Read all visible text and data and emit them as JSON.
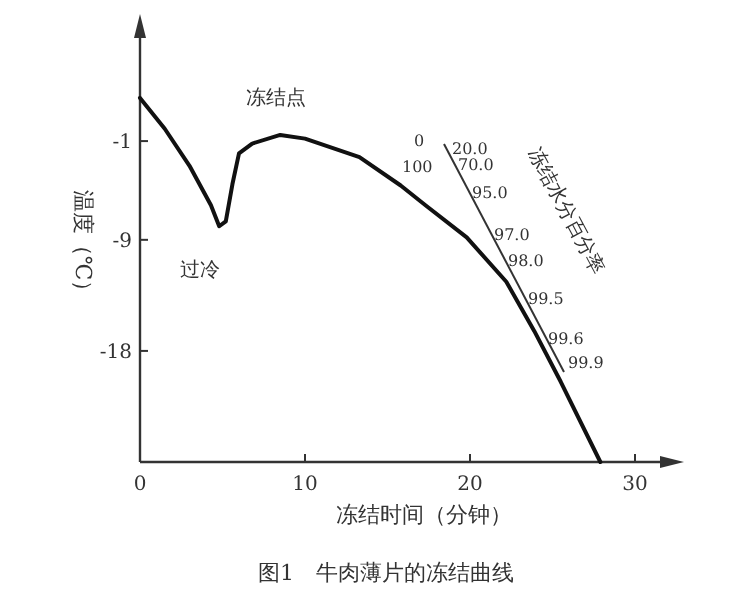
{
  "chart_data": {
    "type": "line",
    "xlabel": "冻结时间（分钟）",
    "ylabel": "温度（℃）",
    "x": [
      0,
      1.5,
      3,
      4.3,
      4.8,
      5.2,
      5.6,
      6,
      6.8,
      8.5,
      10,
      13.3,
      15.8,
      17.3,
      19.8,
      22.2,
      23.9,
      25.5,
      27.9
    ],
    "series": [
      {
        "color": "#111111",
        "values": [
          2.5,
          0,
          -3,
          -6.2,
          -7.9,
          -7.5,
          -4.5,
          -2,
          -1.2,
          -0.5,
          -0.8,
          -2.3,
          -4.6,
          -6.2,
          -8.8,
          -12.4,
          -16.4,
          -20.5,
          -27
        ]
      }
    ],
    "xlim": [
      0,
      32
    ],
    "ylim": [
      -27,
      8
    ],
    "xticks": [
      0,
      10,
      20,
      30
    ],
    "yticks": [
      {
        "value": -1,
        "label": "-1"
      },
      {
        "value": -9,
        "label": "-9"
      },
      {
        "value": -18,
        "label": "-18"
      }
    ],
    "annotations": [
      "冻结点",
      "过冷",
      "0",
      "100",
      "20.0",
      "70.0",
      "95.0",
      "97.0",
      "98.0",
      "99.5",
      "99.6",
      "99.9",
      "冻结水分百分率",
      "图1　牛肉薄片的冻结曲线"
    ]
  }
}
